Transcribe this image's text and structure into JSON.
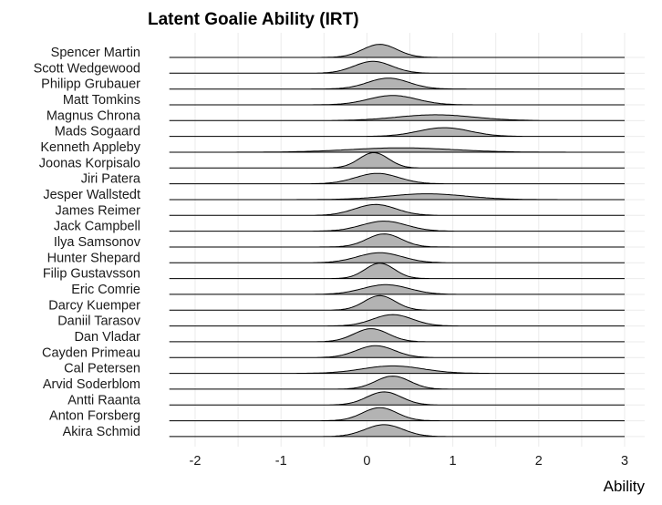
{
  "chart_data": {
    "type": "ridgeline",
    "title": "Latent Goalie Ability (IRT)",
    "xlabel": "Ability",
    "ylabel": "",
    "xlim": [
      -2.3,
      3.0
    ],
    "x_ticks": [
      -2,
      -1,
      0,
      1,
      2,
      3
    ],
    "grid": true,
    "fill_color": "#b3b3b3",
    "line_color": "#000000",
    "series": [
      {
        "name": "Spencer Martin",
        "mean": 0.15,
        "sd": 0.2
      },
      {
        "name": "Scott Wedgewood",
        "mean": 0.07,
        "sd": 0.22
      },
      {
        "name": "Philipp Grubauer",
        "mean": 0.25,
        "sd": 0.24
      },
      {
        "name": "Matt Tomkins",
        "mean": 0.3,
        "sd": 0.28
      },
      {
        "name": "Magnus Chrona",
        "mean": 0.8,
        "sd": 0.45
      },
      {
        "name": "Mads Sogaard",
        "mean": 0.9,
        "sd": 0.3
      },
      {
        "name": "Kenneth Appleby",
        "mean": 0.4,
        "sd": 0.6
      },
      {
        "name": "Joonas Korpisalo",
        "mean": 0.08,
        "sd": 0.17
      },
      {
        "name": "Jiri Patera",
        "mean": 0.12,
        "sd": 0.25
      },
      {
        "name": "Jesper Wallstedt",
        "mean": 0.7,
        "sd": 0.45
      },
      {
        "name": "James Reimer",
        "mean": 0.1,
        "sd": 0.24
      },
      {
        "name": "Jack Campbell",
        "mean": 0.2,
        "sd": 0.26
      },
      {
        "name": "Ilya Samsonov",
        "mean": 0.2,
        "sd": 0.2
      },
      {
        "name": "Hunter Shepard",
        "mean": 0.15,
        "sd": 0.26
      },
      {
        "name": "Filip Gustavsson",
        "mean": 0.15,
        "sd": 0.17
      },
      {
        "name": "Eric Comrie",
        "mean": 0.22,
        "sd": 0.27
      },
      {
        "name": "Darcy Kuemper",
        "mean": 0.15,
        "sd": 0.18
      },
      {
        "name": "Daniil Tarasov",
        "mean": 0.3,
        "sd": 0.23
      },
      {
        "name": "Dan Vladar",
        "mean": 0.05,
        "sd": 0.2
      },
      {
        "name": "Cayden Primeau",
        "mean": 0.1,
        "sd": 0.22
      },
      {
        "name": "Cal Petersen",
        "mean": 0.3,
        "sd": 0.35
      },
      {
        "name": "Arvid Soderblom",
        "mean": 0.3,
        "sd": 0.2
      },
      {
        "name": "Antti Raanta",
        "mean": 0.2,
        "sd": 0.2
      },
      {
        "name": "Anton Forsberg",
        "mean": 0.15,
        "sd": 0.2
      },
      {
        "name": "Akira Schmid",
        "mean": 0.2,
        "sd": 0.22
      }
    ]
  }
}
